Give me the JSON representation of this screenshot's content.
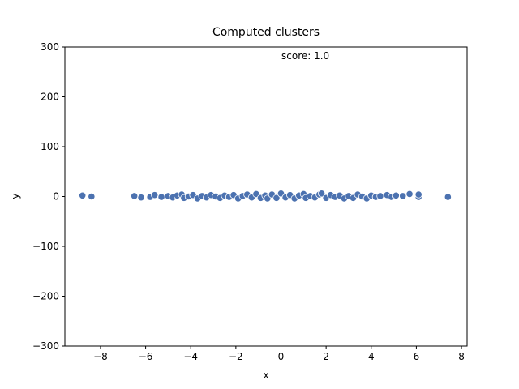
{
  "chart_data": {
    "type": "scatter",
    "title": "Computed clusters",
    "annotation": "score: 1.0",
    "x_label": "x",
    "y_label": "y",
    "color": "#4c72b0",
    "xlim": [
      -9.58,
      8.25
    ],
    "ylim": [
      -300,
      300
    ],
    "xticks": [
      {
        "value": -8,
        "label": "−8"
      },
      {
        "value": -6,
        "label": "−6"
      },
      {
        "value": -4,
        "label": "−4"
      },
      {
        "value": -2,
        "label": "−2"
      },
      0,
      2,
      4,
      6,
      8
    ],
    "yticks": [
      {
        "value": -300,
        "label": "−300"
      },
      {
        "value": -200,
        "label": "−200"
      },
      {
        "value": -100,
        "label": "−100"
      },
      0,
      100,
      200,
      300
    ],
    "x": [
      -8.8,
      -8.4,
      -6.5,
      -6.2,
      -5.8,
      -5.6,
      -5.3,
      -5.0,
      -4.8,
      -4.6,
      -4.4,
      -4.3,
      -4.1,
      -3.9,
      -3.7,
      -3.5,
      -3.3,
      -3.1,
      -2.9,
      -2.7,
      -2.5,
      -2.3,
      -2.1,
      -1.9,
      -1.7,
      -1.5,
      -1.3,
      -1.1,
      -0.9,
      -0.7,
      -0.6,
      -0.4,
      -0.2,
      0,
      0.2,
      0.4,
      0.6,
      0.8,
      1.0,
      1.1,
      1.3,
      1.5,
      1.7,
      1.8,
      2.0,
      2.2,
      2.4,
      2.6,
      2.8,
      3.0,
      3.2,
      3.4,
      3.6,
      3.8,
      4.0,
      4.2,
      4.4,
      4.7,
      4.9,
      5.1,
      5.4,
      5.7,
      6.1,
      6.1,
      7.4
    ],
    "values": [
      2,
      0,
      1,
      -2,
      -1,
      3,
      -1,
      1,
      -2,
      2,
      4,
      -3,
      0,
      3,
      -4,
      1,
      -2,
      3,
      0,
      -3,
      2,
      -1,
      3,
      -4,
      1,
      4,
      -2,
      5,
      -3,
      2,
      -4,
      4,
      -3,
      6,
      -2,
      3,
      -4,
      2,
      5,
      -3,
      1,
      -2,
      4,
      6,
      -3,
      3,
      -1,
      2,
      -4,
      1,
      -3,
      4,
      0,
      -4,
      2,
      -1,
      1,
      3,
      -1,
      2,
      1,
      5,
      -1,
      4,
      -1
    ]
  }
}
